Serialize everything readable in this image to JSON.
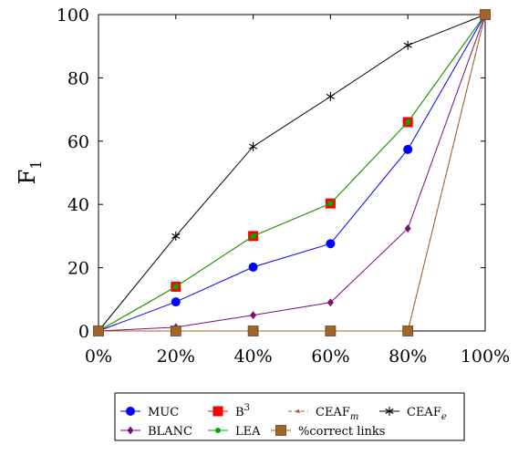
{
  "chart_data": {
    "type": "line",
    "x": [
      0,
      20,
      40,
      60,
      80,
      100
    ],
    "x_tick_labels": [
      "0%",
      "20%",
      "40%",
      "60%",
      "80%",
      "100%"
    ],
    "ylim": [
      0,
      100
    ],
    "y_ticks": [
      0,
      20,
      40,
      60,
      80,
      100
    ],
    "ylabel_main": "F",
    "ylabel_sub": "1",
    "xlabel": "",
    "grid": false,
    "legend_position": "bottom",
    "series": [
      {
        "name": "MUC",
        "name_sup": "",
        "name_sub": "",
        "values": [
          0,
          9.2,
          20.2,
          27.6,
          57.4,
          100
        ],
        "color": "#0000ff",
        "marker": "circle",
        "dash": false
      },
      {
        "name": "B",
        "name_sup": "3",
        "name_sub": "",
        "values": [
          0,
          14,
          30,
          40.3,
          66,
          100
        ],
        "color": "#ff0000",
        "marker": "square",
        "dash": false
      },
      {
        "name": "CEAF",
        "name_sup": "",
        "name_sub": "m",
        "values": [
          0,
          0,
          0,
          0,
          0,
          100
        ],
        "color": "#a0522d",
        "marker": "tri",
        "dash": true
      },
      {
        "name": "CEAF",
        "name_sup": "",
        "name_sub": "e",
        "values": [
          0,
          30,
          58.3,
          74.1,
          90.3,
          100
        ],
        "color": "#000000",
        "marker": "star",
        "dash": false
      },
      {
        "name": "BLANC",
        "name_sup": "",
        "name_sub": "",
        "values": [
          0,
          1.2,
          5,
          9,
          32.4,
          100
        ],
        "color": "#7b0f7b",
        "marker": "diamond",
        "dash": false
      },
      {
        "name": "LEA",
        "name_sup": "",
        "name_sub": "",
        "values": [
          0,
          14,
          30,
          40.3,
          66,
          100
        ],
        "color": "#00aa00",
        "marker": "circle-small",
        "dash": false
      },
      {
        "name": "%correct links",
        "name_sup": "",
        "name_sub": "",
        "values": [
          0,
          0,
          0,
          0,
          0,
          100
        ],
        "color": "#a0652a",
        "marker": "square-big",
        "dash": false
      }
    ]
  }
}
